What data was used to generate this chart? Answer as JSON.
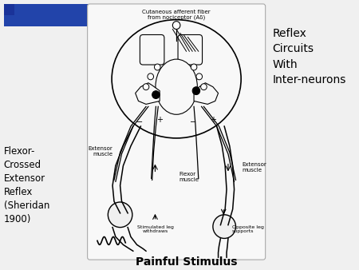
{
  "background_color": "#f0f0f0",
  "title_right": "Reflex\nCircuits\nWith\nInter-neurons",
  "title_left": "Flexor-\nCrossed\nExtensor\nReflex\n(Sheridan\n1900)",
  "bottom_label": "Painful Stimulus",
  "top_annotation": "Cutaneous afferent fiber\nfrom nociceptor (Aδ)",
  "left_muscle_label": "Extensor\nmuscle",
  "right_muscle_label": "Extensor\nmuscle",
  "flexor_label": "Flexor\nmuscle",
  "stimulated_leg": "Stimulated leg\nwithdraws",
  "opposite_leg": "Opposite leg\nsupports",
  "blue_rect_color": "#2244aa",
  "panel_bg": "#ffffff",
  "diagram_bg": "#f8f8f8"
}
